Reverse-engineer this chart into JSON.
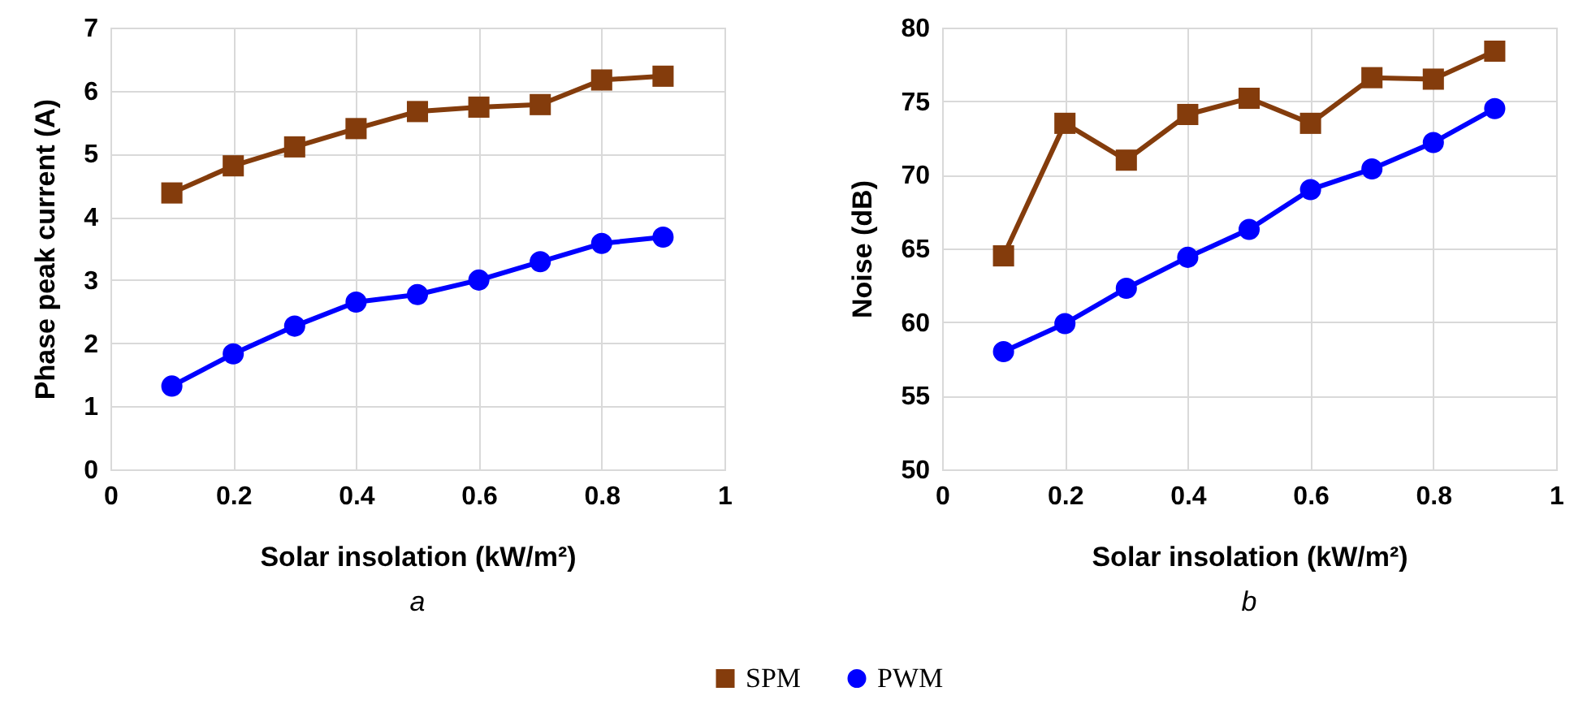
{
  "chart_data": [
    {
      "type": "line",
      "xlabel": "Solar insolation (kW/m²)",
      "ylabel": "Phase peak current (A)",
      "annotations": [
        "a"
      ],
      "x": [
        0.1,
        0.2,
        0.3,
        0.4,
        0.5,
        0.6,
        0.7,
        0.8,
        0.9
      ],
      "xlim": [
        0,
        1
      ],
      "xticks": [
        0,
        0.2,
        0.4,
        0.6,
        0.8,
        1
      ],
      "ylim": [
        0,
        7
      ],
      "yticks": [
        0,
        1,
        2,
        3,
        4,
        5,
        6,
        7
      ],
      "grid": true,
      "legend": "bottom",
      "series": [
        {
          "name": "SPM",
          "color": "#843c0c",
          "marker": "square",
          "values": [
            4.38,
            4.81,
            5.11,
            5.4,
            5.67,
            5.74,
            5.78,
            6.17,
            6.23
          ]
        },
        {
          "name": "PWM",
          "color": "#0000ff",
          "marker": "circle",
          "values": [
            1.32,
            1.83,
            2.27,
            2.65,
            2.77,
            3.0,
            3.29,
            3.58,
            3.68
          ]
        }
      ]
    },
    {
      "type": "line",
      "xlabel": "Solar insolation (kW/m²)",
      "ylabel": "Noise (dB)",
      "annotations": [
        "b"
      ],
      "x": [
        0.1,
        0.2,
        0.3,
        0.4,
        0.5,
        0.6,
        0.7,
        0.8,
        0.9
      ],
      "xlim": [
        0,
        1
      ],
      "xticks": [
        0,
        0.2,
        0.4,
        0.6,
        0.8,
        1
      ],
      "ylim": [
        50,
        80
      ],
      "yticks": [
        50,
        55,
        60,
        65,
        70,
        75,
        80
      ],
      "grid": true,
      "legend": "bottom",
      "series": [
        {
          "name": "SPM",
          "color": "#843c0c",
          "marker": "square",
          "values": [
            64.5,
            73.5,
            71.0,
            74.1,
            75.2,
            73.5,
            76.6,
            76.5,
            78.4
          ]
        },
        {
          "name": "PWM",
          "color": "#0000ff",
          "marker": "circle",
          "values": [
            58.0,
            59.9,
            62.3,
            64.4,
            66.3,
            69.0,
            70.4,
            72.2,
            74.5
          ]
        }
      ]
    }
  ]
}
